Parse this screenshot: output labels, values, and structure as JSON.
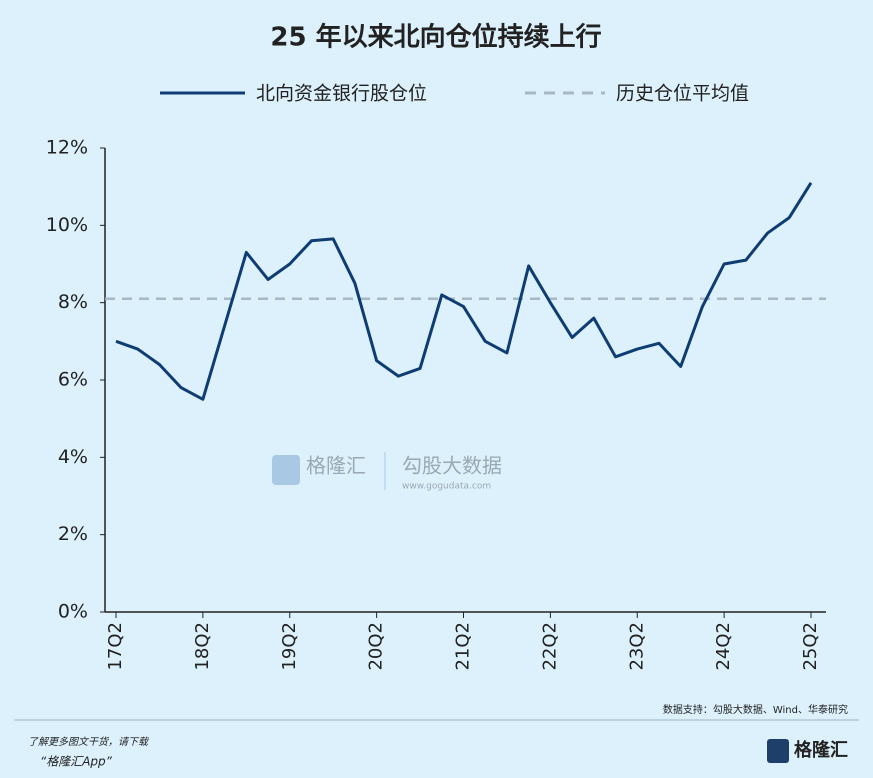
{
  "chart_data": {
    "type": "line",
    "title": "25 年以来北向仓位持续上行",
    "categories": [
      "17Q2",
      null,
      null,
      null,
      "18Q2",
      null,
      null,
      null,
      "19Q2",
      null,
      null,
      null,
      "20Q2",
      null,
      null,
      null,
      "21Q2",
      null,
      null,
      null,
      "22Q2",
      null,
      null,
      null,
      "23Q2",
      null,
      null,
      null,
      "24Q2",
      null,
      null,
      null,
      "25Q2"
    ],
    "series": [
      {
        "name": "北向资金银行股仓位",
        "color": "#0f3d73",
        "values": [
          7.0,
          6.8,
          6.4,
          5.8,
          5.5,
          7.4,
          9.3,
          8.6,
          9.0,
          9.6,
          9.65,
          8.5,
          6.5,
          6.1,
          6.3,
          8.2,
          7.9,
          7.0,
          6.7,
          8.95,
          8.0,
          7.1,
          7.6,
          6.6,
          6.8,
          6.95,
          6.35,
          7.9,
          9.0,
          9.1,
          9.8,
          10.2,
          11.1
        ]
      }
    ],
    "average": {
      "name": "历史仓位平均值",
      "value": 8.1,
      "color": "#a9b8c2",
      "dashed": true
    },
    "ylim": [
      0,
      12
    ],
    "yticks": [
      {
        "value": 0,
        "label": "0%"
      },
      {
        "value": 2,
        "label": "2%"
      },
      {
        "value": 4,
        "label": "4%"
      },
      {
        "value": 6,
        "label": "6%"
      },
      {
        "value": 8,
        "label": "8%"
      },
      {
        "value": 10,
        "label": "10%"
      },
      {
        "value": 12,
        "label": "12%"
      }
    ],
    "source": "数据支持：勾股大数据、Wind、华泰研究",
    "watermark": [
      "格隆汇",
      "勾股大数据",
      "www.gogudata.com"
    ]
  },
  "footer": {
    "line1": "了解更多图文干货，请下载",
    "line2": "“格隆汇App”",
    "logo": "格隆汇"
  }
}
